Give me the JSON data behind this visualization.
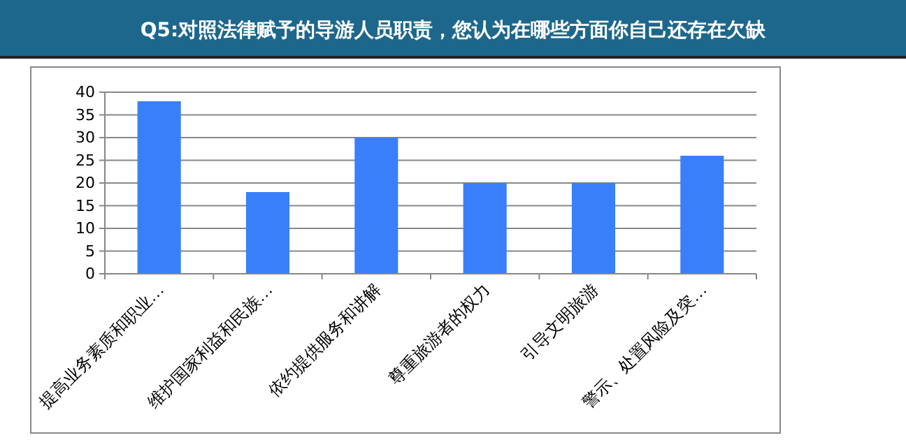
{
  "chart_data": {
    "type": "bar",
    "title": "Q5:对照法律赋予的导游人员职责，您认为在哪些方面你自己还存在欠缺",
    "categories": [
      "提高业务素质和职业…",
      "维护国家利益和民族…",
      "依约提供服务和讲解",
      "尊重旅游者的权力",
      "引导文明旅游",
      "警示、处置风险及突…"
    ],
    "values": [
      38,
      18,
      30,
      20,
      20,
      26
    ],
    "color": "#3a7ffa",
    "ylim": [
      0,
      40
    ],
    "yticks": [
      0,
      5,
      10,
      15,
      20,
      25,
      30,
      35,
      40
    ],
    "grid": "y"
  }
}
